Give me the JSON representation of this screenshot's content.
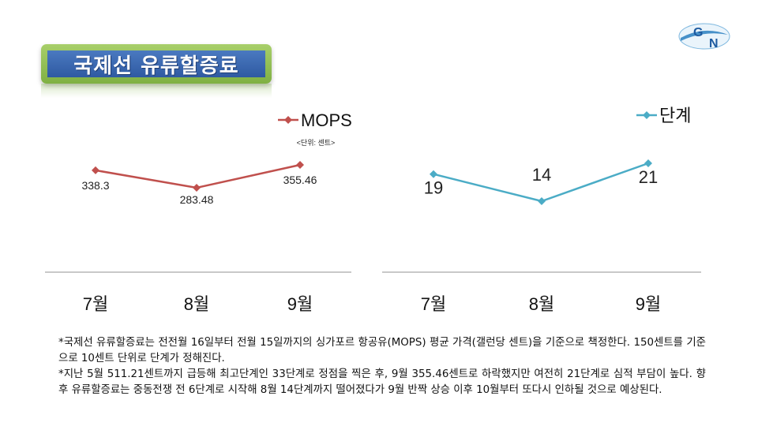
{
  "page": {
    "title": "국제선 유류할증료",
    "logo_text": "GN",
    "notes": [
      "*국제선 유류할증료는 전전월 16일부터 전월 15일까지의 싱가포르 항공유(MOPS) 평균 가격(갤런당 센트)을 기준으로 책정한다. 150센트를 기준으로 10센트 단위로 단계가 정해진다.",
      "*지난 5월 511.21센트까지 급등해 최고단계인 33단계로 정점을 찍은 후, 9월 355.46센트로 하락했지만 여전히 21단계로 심적 부담이 높다. 향후 유류할증료는 중동전쟁 전 6단계로 시작해 8월 14단계까지 떨어졌다가 9월 반짝 상승 이후 10월부터 또다시 인하될 것으로 예상된다."
    ]
  },
  "chart_data": [
    {
      "type": "line",
      "categories": [
        "7월",
        "8월",
        "9월"
      ],
      "series": [
        {
          "name": "MOPS",
          "values": [
            338.3,
            283.48,
            355.46
          ],
          "labels": [
            "338.3",
            "283.48",
            "355.46"
          ],
          "color": "#c0504d"
        }
      ],
      "unit_note": "<단위: 센트>",
      "legend_position": "top-right",
      "grid": false
    },
    {
      "type": "line",
      "categories": [
        "7월",
        "8월",
        "9월"
      ],
      "series": [
        {
          "name": "단계",
          "values": [
            19,
            14,
            21
          ],
          "labels": [
            "19",
            "14",
            "21"
          ],
          "color": "#4bacc6"
        }
      ],
      "legend_position": "top-right",
      "grid": false
    }
  ]
}
